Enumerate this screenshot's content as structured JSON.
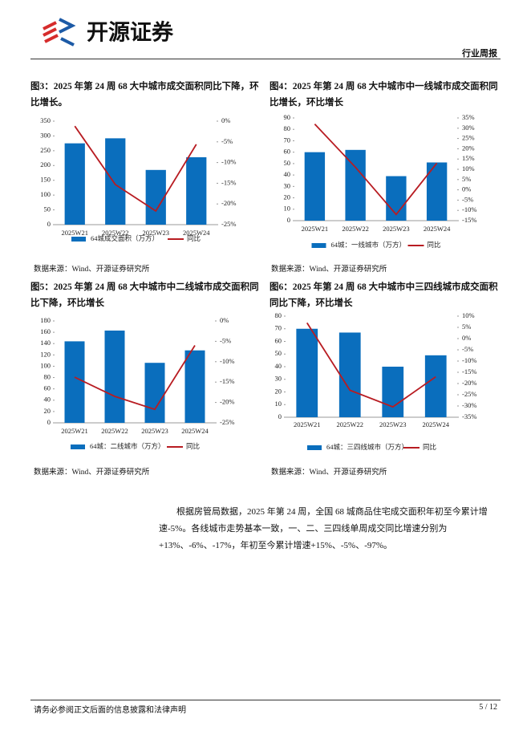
{
  "header": {
    "logo": "开源证券",
    "report_type": "行业周报"
  },
  "chart_data": [
    {
      "type": "combo",
      "title": "图3：2025 年第 24 周 68 大中城市成交面积同比下降，环比增长。",
      "source": "数据来源：Wind、开源证券研究所",
      "categories": [
        "2025W21",
        "2025W22",
        "2025W23",
        "2025W24"
      ],
      "series": [
        {
          "name": "64城成交面积（万方）",
          "type": "bar",
          "color": "#0a6ebd",
          "values": [
            275,
            292,
            185,
            228
          ]
        },
        {
          "name": "同比",
          "type": "line",
          "axis": "y2",
          "color": "#b81c22",
          "values": [
            -1.2,
            -15.3,
            -21.7,
            -5.6
          ]
        }
      ],
      "ylim": [
        0,
        350
      ],
      "yticks": [
        0,
        50,
        100,
        150,
        200,
        250,
        300,
        350
      ],
      "y2lim": [
        -25,
        0
      ],
      "y2ticks": [
        {
          "value": 0,
          "label": "0%"
        },
        {
          "value": -5,
          "label": "-5%"
        },
        {
          "value": -10,
          "label": "-10%"
        },
        {
          "value": -15,
          "label": "-15%"
        },
        {
          "value": -20,
          "label": "-20%"
        },
        {
          "value": -25,
          "label": "-25%"
        }
      ]
    },
    {
      "type": "combo",
      "title": "图4：2025 年第 24 周 68 大中城市中一线城市成交面积同比增长，环比增长",
      "source": "数据来源：Wind、开源证券研究所",
      "categories": [
        "2025W21",
        "2025W22",
        "2025W23",
        "2025W24"
      ],
      "series": [
        {
          "name": "64城：一线城市（万方）",
          "type": "bar",
          "color": "#0a6ebd",
          "values": [
            60,
            62,
            39,
            51
          ]
        },
        {
          "name": "同比",
          "type": "line",
          "axis": "y2",
          "color": "#b81c22",
          "values": [
            32,
            11,
            -12,
            13
          ]
        }
      ],
      "ylim": [
        0,
        90
      ],
      "yticks": [
        0,
        10,
        20,
        30,
        40,
        50,
        60,
        70,
        80,
        90
      ],
      "y2lim": [
        -15,
        35
      ],
      "y2ticks": [
        {
          "value": 35,
          "label": "35%"
        },
        {
          "value": 30,
          "label": "30%"
        },
        {
          "value": 25,
          "label": "25%"
        },
        {
          "value": 20,
          "label": "20%"
        },
        {
          "value": 15,
          "label": "15%"
        },
        {
          "value": 10,
          "label": "10%"
        },
        {
          "value": 5,
          "label": "5%"
        },
        {
          "value": 0,
          "label": "0%"
        },
        {
          "value": -5,
          "label": "-5%"
        },
        {
          "value": -10,
          "label": "-10%"
        },
        {
          "value": -15,
          "label": "-15%"
        }
      ]
    },
    {
      "type": "combo",
      "title": "图5：2025 年第 24 周 68 大中城市中二线城市成交面积同比下降，环比增长",
      "source": "数据来源：Wind、开源证券研究所",
      "categories": [
        "2025W21",
        "2025W22",
        "2025W23",
        "2025W24"
      ],
      "series": [
        {
          "name": "64城：二线城市（万方）",
          "type": "bar",
          "color": "#0a6ebd",
          "values": [
            144,
            163,
            106,
            128
          ]
        },
        {
          "name": "同比",
          "type": "line",
          "axis": "y2",
          "color": "#b81c22",
          "values": [
            -13.8,
            -18.5,
            -21.7,
            -6
          ]
        }
      ],
      "ylim": [
        0,
        180
      ],
      "yticks": [
        0,
        20,
        40,
        60,
        80,
        100,
        120,
        140,
        160,
        180
      ],
      "y2lim": [
        -25,
        0
      ],
      "y2ticks": [
        {
          "value": 0,
          "label": "0%"
        },
        {
          "value": -5,
          "label": "-5%"
        },
        {
          "value": -10,
          "label": "-10%"
        },
        {
          "value": -15,
          "label": "-15%"
        },
        {
          "value": -20,
          "label": "-20%"
        },
        {
          "value": -25,
          "label": "-25%"
        }
      ]
    },
    {
      "type": "combo",
      "title": "图6：2025 年第 24 周 68 大中城市中三四线城市成交面积同比下降，环比增长",
      "source": "数据来源：Wind、开源证券研究所",
      "categories": [
        "2025W21",
        "2025W22",
        "2025W23",
        "2025W24"
      ],
      "series": [
        {
          "name": "64城：三四线城市（万方）",
          "type": "bar",
          "color": "#0a6ebd",
          "values": [
            70,
            67,
            40,
            49
          ]
        },
        {
          "name": "同比",
          "type": "line",
          "axis": "y2",
          "color": "#b81c22",
          "values": [
            7,
            -23,
            -30.4,
            -17
          ]
        }
      ],
      "ylim": [
        0,
        80
      ],
      "yticks": [
        0,
        10,
        20,
        30,
        40,
        50,
        60,
        70,
        80
      ],
      "y2lim": [
        -35,
        10
      ],
      "y2ticks": [
        {
          "value": 10,
          "label": "10%"
        },
        {
          "value": 5,
          "label": "5%"
        },
        {
          "value": 0,
          "label": "0%"
        },
        {
          "value": -5,
          "label": "-5%"
        },
        {
          "value": -10,
          "label": "-10%"
        },
        {
          "value": -15,
          "label": "-15%"
        },
        {
          "value": -20,
          "label": "-20%"
        },
        {
          "value": -25,
          "label": "-25%"
        },
        {
          "value": -30,
          "label": "-30%"
        },
        {
          "value": -35,
          "label": "-35%"
        }
      ]
    }
  ],
  "paragraph": "根据房管局数据，2025 年第 24 周，全国 68 城商品住宅成交面积年初至今累计增速-5%。各线城市走势基本一致，一、二、三四线单周成交同比增速分别为+13%、-6%、-17%，年初至今累计增速+15%、-5%、-97%。",
  "footer": {
    "disclaimer": "请务必参阅正文后面的信息披露和法律声明",
    "page": "5 / 12"
  }
}
